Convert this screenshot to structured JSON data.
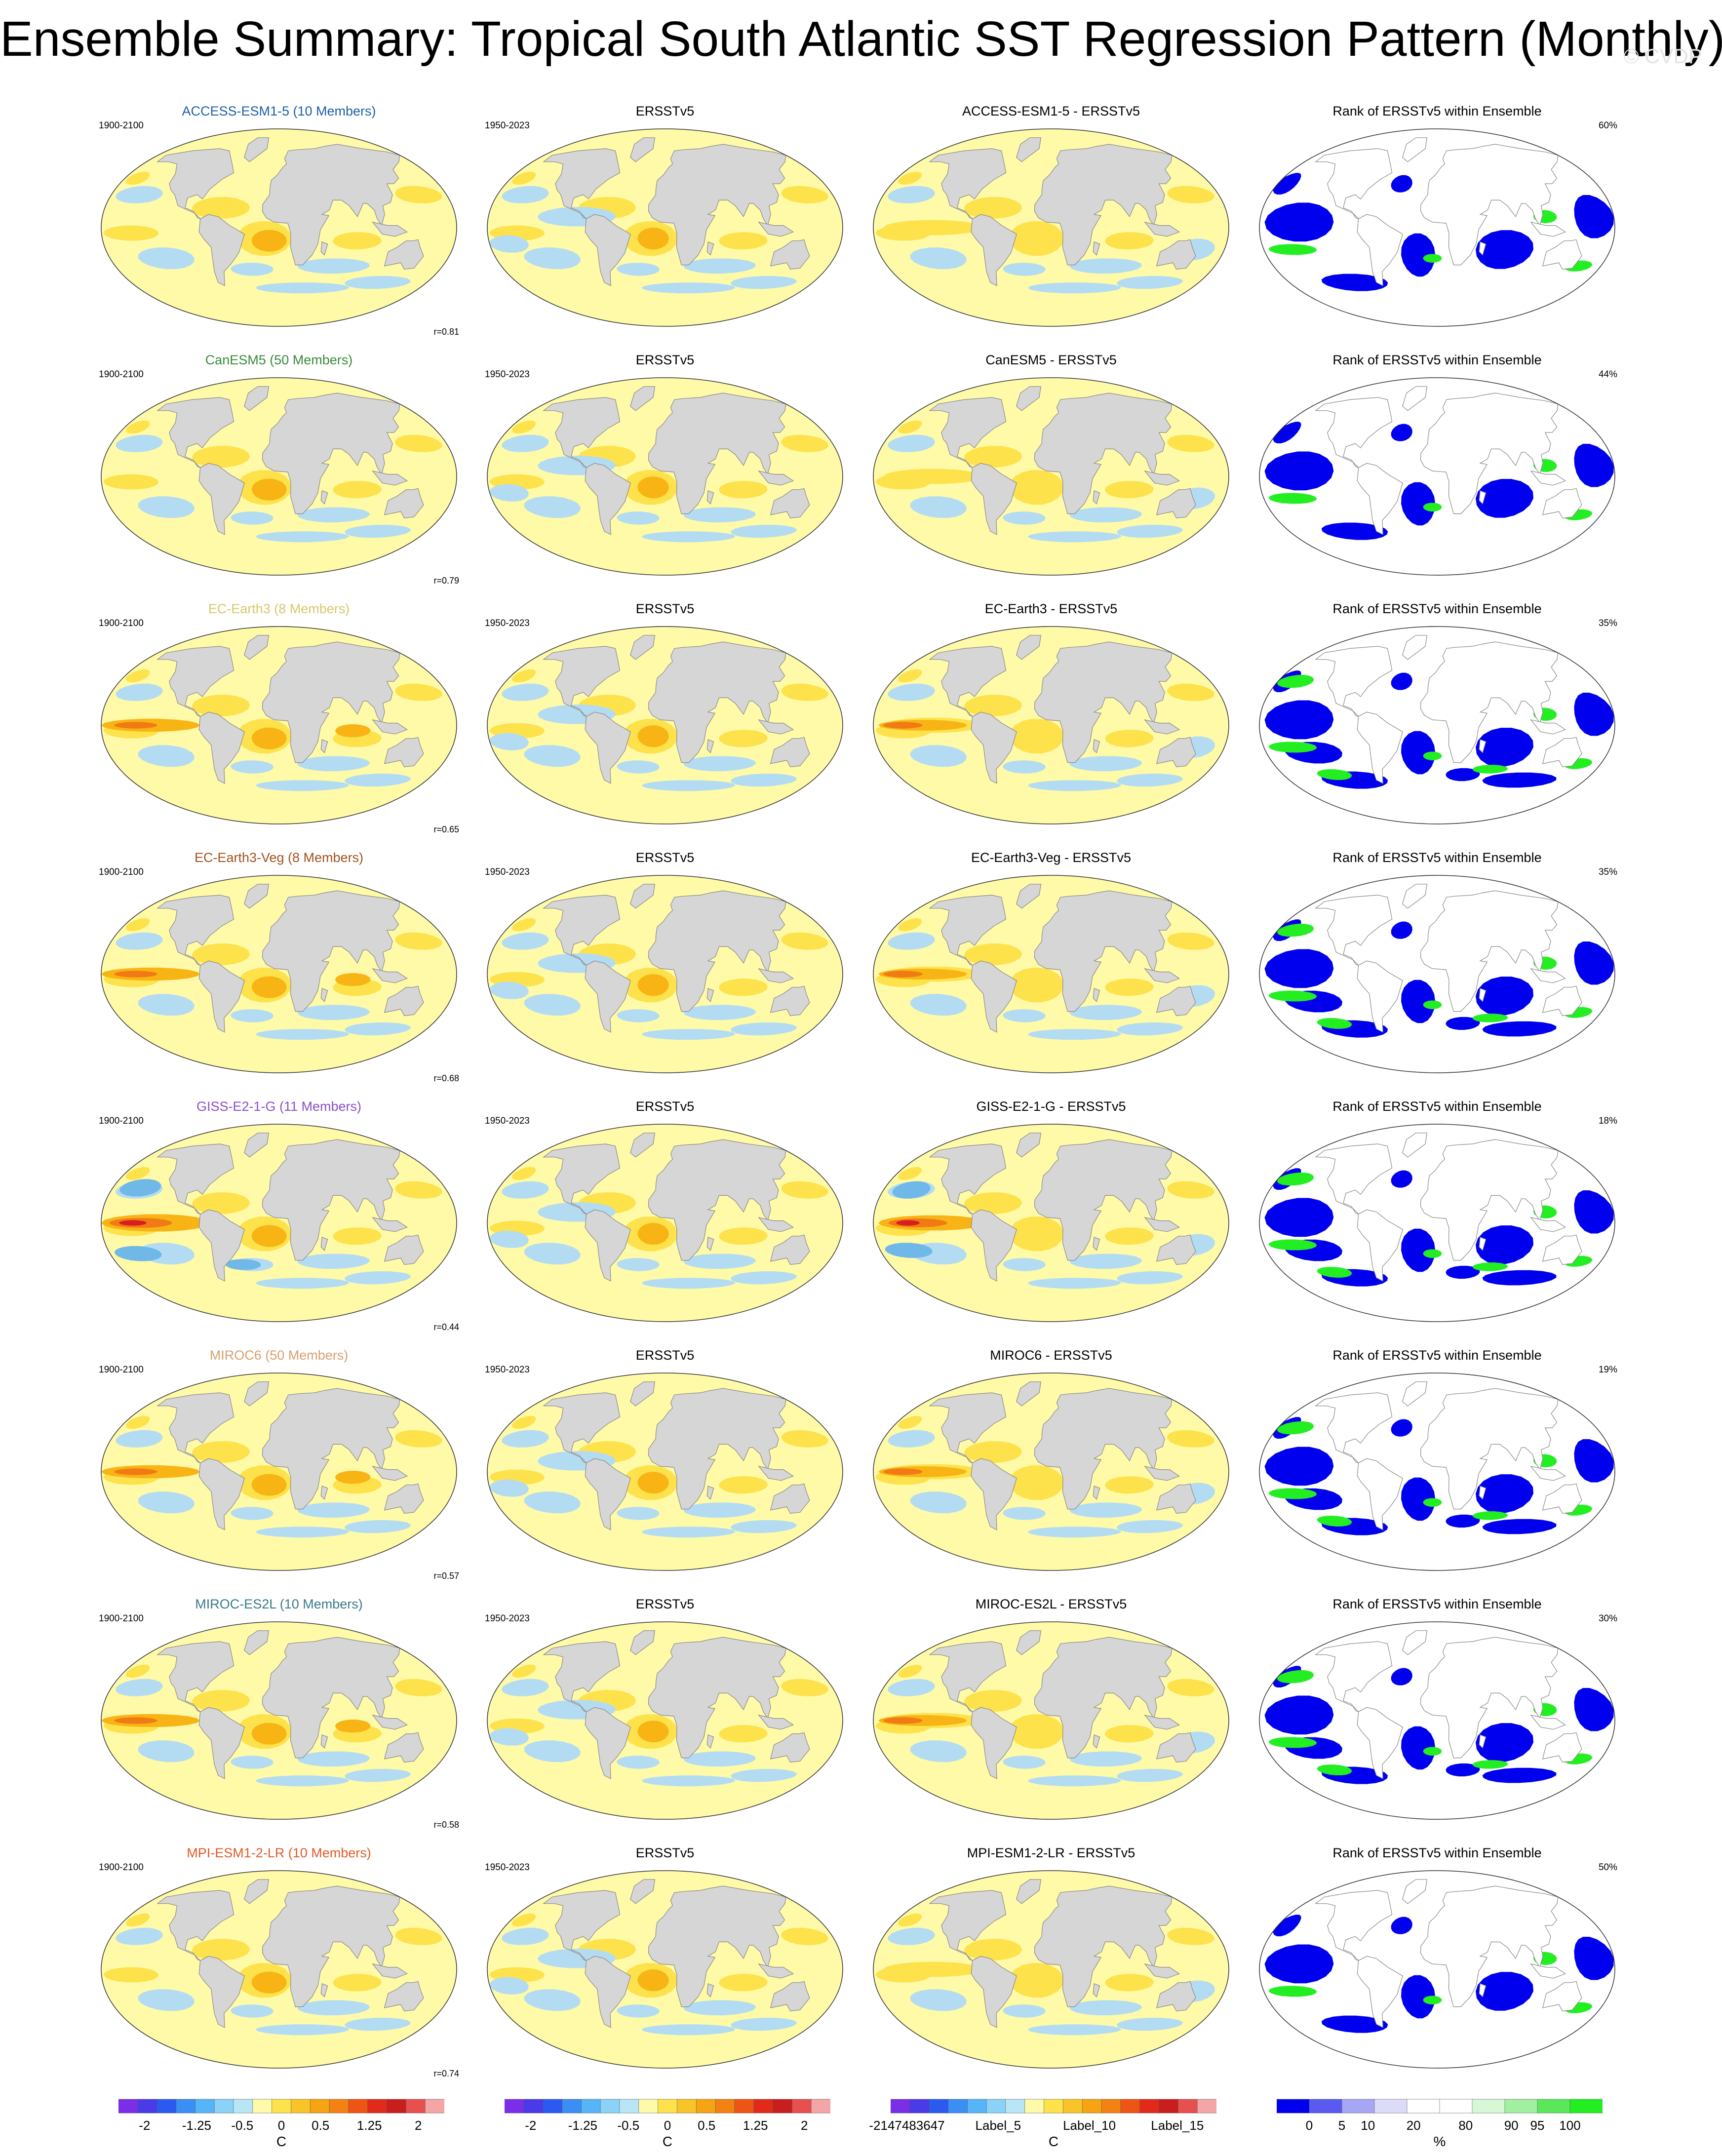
{
  "title": "Ensemble Summary: Tropical South Atlantic SST Regression Pattern (Monthly)",
  "watermark": "© CVDP",
  "colors": {
    "ocean_base": "#fffaa8",
    "warm1": "#fde24c",
    "warm2": "#f8b414",
    "warm3": "#f07a14",
    "warm4": "#d81e1e",
    "cool1": "#b3dcf2",
    "cool2": "#6fb8e8",
    "land": "#d6d6d6",
    "rank_low": "#0000ee",
    "rank_high": "#22ee22"
  },
  "rows": [
    {
      "model": "ACCESS-ESM1-5 (10 Members)",
      "model_color": "#1f5fa8",
      "model_period": "1900-2100",
      "obs_title": "ERSSTv5",
      "obs_period": "1950-2023",
      "diff_title": "ACCESS-ESM1-5 - ERSSTv5",
      "rank_title": "Rank of ERSSTv5 within Ensemble",
      "pct": "60%",
      "corr": "r=0.81",
      "pattern": "mild"
    },
    {
      "model": "CanESM5 (50 Members)",
      "model_color": "#3a8a3a",
      "model_period": "1900-2100",
      "obs_title": "ERSSTv5",
      "obs_period": "1950-2023",
      "diff_title": "CanESM5 - ERSSTv5",
      "rank_title": "Rank of ERSSTv5 within Ensemble",
      "pct": "44%",
      "corr": "r=0.79",
      "pattern": "mild"
    },
    {
      "model": "EC-Earth3 (8 Members)",
      "model_color": "#d8c86a",
      "model_period": "1900-2100",
      "obs_title": "ERSSTv5",
      "obs_period": "1950-2023",
      "diff_title": "EC-Earth3 - ERSSTv5",
      "rank_title": "Rank of ERSSTv5 within Ensemble",
      "pct": "35%",
      "corr": "r=0.65",
      "pattern": "strong"
    },
    {
      "model": "EC-Earth3-Veg (8 Members)",
      "model_color": "#a0521e",
      "model_period": "1900-2100",
      "obs_title": "ERSSTv5",
      "obs_period": "1950-2023",
      "diff_title": "EC-Earth3-Veg - ERSSTv5",
      "rank_title": "Rank of ERSSTv5 within Ensemble",
      "pct": "35%",
      "corr": "r=0.68",
      "pattern": "strong"
    },
    {
      "model": "GISS-E2-1-G (11 Members)",
      "model_color": "#8a4fc8",
      "model_period": "1900-2100",
      "obs_title": "ERSSTv5",
      "obs_period": "1950-2023",
      "diff_title": "GISS-E2-1-G - ERSSTv5",
      "rank_title": "Rank of ERSSTv5 within Ensemble",
      "pct": "18%",
      "corr": "r=0.44",
      "pattern": "extreme"
    },
    {
      "model": "MIROC6 (50 Members)",
      "model_color": "#d8a070",
      "model_period": "1900-2100",
      "obs_title": "ERSSTv5",
      "obs_period": "1950-2023",
      "diff_title": "MIROC6 - ERSSTv5",
      "rank_title": "Rank of ERSSTv5 within Ensemble",
      "pct": "19%",
      "corr": "r=0.57",
      "pattern": "strong"
    },
    {
      "model": "MIROC-ES2L (10 Members)",
      "model_color": "#3a7a8a",
      "model_period": "1900-2100",
      "obs_title": "ERSSTv5",
      "obs_period": "1950-2023",
      "diff_title": "MIROC-ES2L - ERSSTv5",
      "rank_title": "Rank of ERSSTv5 within Ensemble",
      "pct": "30%",
      "corr": "r=0.58",
      "pattern": "strong"
    },
    {
      "model": "MPI-ESM1-2-LR (10 Members)",
      "model_color": "#e05a28",
      "model_period": "1900-2100",
      "obs_title": "ERSSTv5",
      "obs_period": "1950-2023",
      "diff_title": "MPI-ESM1-2-LR - ERSSTv5",
      "rank_title": "Rank of ERSSTv5 within Ensemble",
      "pct": "50%",
      "corr": "r=0.74",
      "pattern": "mild"
    }
  ],
  "colorbars": [
    {
      "unit": "C",
      "colors": [
        "#7a2ee8",
        "#4a3ae8",
        "#2a5af0",
        "#3a8ef4",
        "#56b4f8",
        "#8ad2f8",
        "#b8e6f6",
        "#fffaa8",
        "#fde24c",
        "#f8c42a",
        "#f6a414",
        "#f48212",
        "#ee5414",
        "#e22a1a",
        "#c81e1e",
        "#e85050",
        "#f4a6a6"
      ],
      "ticks": [
        {
          "label": "-2",
          "pos": 0.08
        },
        {
          "label": "-1.25",
          "pos": 0.24
        },
        {
          "label": "-0.5",
          "pos": 0.38
        },
        {
          "label": "0",
          "pos": 0.5
        },
        {
          "label": "0.5",
          "pos": 0.62
        },
        {
          "label": "1.25",
          "pos": 0.77
        },
        {
          "label": "2",
          "pos": 0.92
        }
      ]
    },
    {
      "unit": "C",
      "colors": [
        "#7a2ee8",
        "#4a3ae8",
        "#2a5af0",
        "#3a8ef4",
        "#56b4f8",
        "#8ad2f8",
        "#b8e6f6",
        "#fffaa8",
        "#fde24c",
        "#f8c42a",
        "#f6a414",
        "#f48212",
        "#ee5414",
        "#e22a1a",
        "#c81e1e",
        "#e85050",
        "#f4a6a6"
      ],
      "ticks": [
        {
          "label": "-2",
          "pos": 0.08
        },
        {
          "label": "-1.25",
          "pos": 0.24
        },
        {
          "label": "-0.5",
          "pos": 0.38
        },
        {
          "label": "0",
          "pos": 0.5
        },
        {
          "label": "0.5",
          "pos": 0.62
        },
        {
          "label": "1.25",
          "pos": 0.77
        },
        {
          "label": "2",
          "pos": 0.92
        }
      ]
    },
    {
      "unit": "C",
      "colors": [
        "#7a2ee8",
        "#4a3ae8",
        "#2a5af0",
        "#3a8ef4",
        "#56b4f8",
        "#8ad2f8",
        "#b8e6f6",
        "#fffaa8",
        "#fde24c",
        "#f8c42a",
        "#f6a414",
        "#f48212",
        "#ee5414",
        "#e22a1a",
        "#c81e1e",
        "#e85050",
        "#f4a6a6"
      ],
      "ticks": [
        {
          "label": "-2147483647",
          "pos": 0.05
        },
        {
          "label": "Label_5",
          "pos": 0.33
        },
        {
          "label": "Label_10",
          "pos": 0.61
        },
        {
          "label": "Label_15",
          "pos": 0.88
        }
      ]
    },
    {
      "unit": "%",
      "colors": [
        "#0000ee",
        "#5a5af0",
        "#a6a6f4",
        "#dcdcf8",
        "#ffffff",
        "#ffffff",
        "#d6f8d6",
        "#a0f0a0",
        "#5ae85a",
        "#22ee22"
      ],
      "ticks": [
        {
          "label": "0",
          "pos": 0.1
        },
        {
          "label": "5",
          "pos": 0.2
        },
        {
          "label": "10",
          "pos": 0.28
        },
        {
          "label": "20",
          "pos": 0.42
        },
        {
          "label": "80",
          "pos": 0.58
        },
        {
          "label": "90",
          "pos": 0.72
        },
        {
          "label": "95",
          "pos": 0.8
        },
        {
          "label": "100",
          "pos": 0.9
        }
      ]
    }
  ]
}
